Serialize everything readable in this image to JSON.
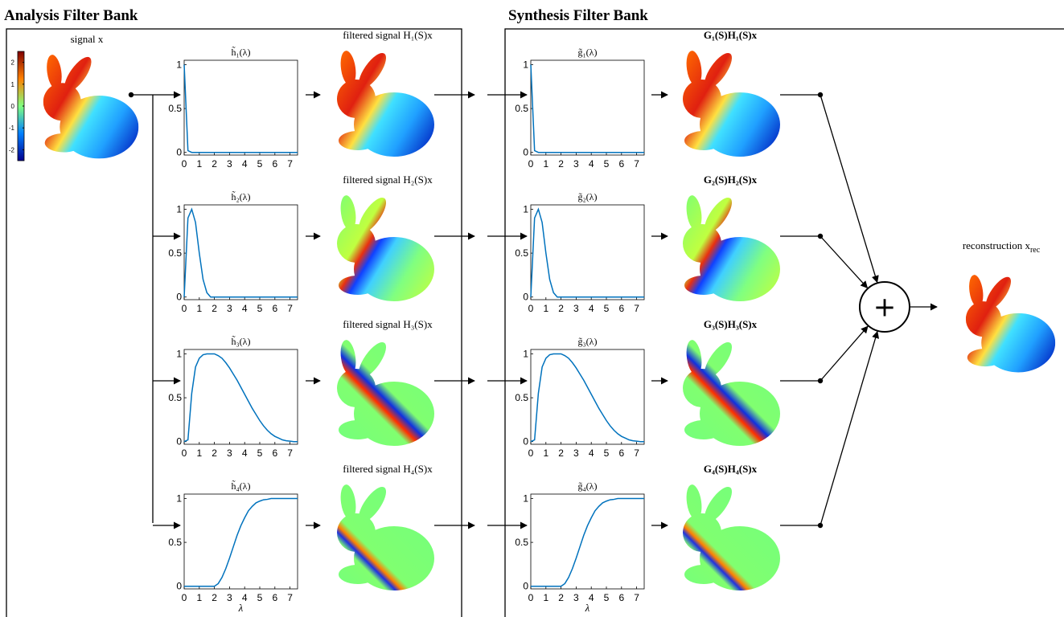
{
  "titles": {
    "analysis": "Analysis Filter Bank",
    "synthesis": "Synthesis Filter Bank"
  },
  "input_label": "signal x",
  "colorbar": {
    "lim": [
      -2.5,
      2.5
    ],
    "ticks": [
      -2,
      -1,
      0,
      1,
      2
    ]
  },
  "plot_axes": {
    "xlim": [
      0,
      7.5
    ],
    "ylim": [
      -0.03,
      1.05
    ],
    "xticks": [
      0,
      1,
      2,
      3,
      4,
      5,
      6,
      7
    ],
    "yticks": [
      0,
      0.5,
      1
    ],
    "xlabel": "λ",
    "x": [
      0,
      0.25,
      0.5,
      0.75,
      1,
      1.25,
      1.5,
      1.75,
      2,
      2.25,
      2.5,
      2.75,
      3,
      3.25,
      3.5,
      3.75,
      4,
      4.25,
      4.5,
      4.75,
      5,
      5.25,
      5.5,
      5.75,
      6,
      6.25,
      6.5,
      6.75,
      7,
      7.25,
      7.5
    ]
  },
  "analysis": [
    {
      "filter": "h̃₁(λ)",
      "output": "filtered signal H₁(S)x",
      "response": [
        1,
        0.02,
        0,
        0,
        0,
        0,
        0,
        0,
        0,
        0,
        0,
        0,
        0,
        0,
        0,
        0,
        0,
        0,
        0,
        0,
        0,
        0,
        0,
        0,
        0,
        0,
        0,
        0,
        0,
        0,
        0
      ]
    },
    {
      "filter": "h̃₂(λ)",
      "output": "filtered signal H₂(S)x",
      "response": [
        0,
        0.9,
        1,
        0.85,
        0.5,
        0.2,
        0.05,
        0,
        0,
        0,
        0,
        0,
        0,
        0,
        0,
        0,
        0,
        0,
        0,
        0,
        0,
        0,
        0,
        0,
        0,
        0,
        0,
        0,
        0,
        0,
        0
      ]
    },
    {
      "filter": "h̃₃(λ)",
      "output": "filtered signal H₃(S)x",
      "response": [
        0,
        0.02,
        0.55,
        0.85,
        0.95,
        0.99,
        1,
        1,
        1,
        0.98,
        0.95,
        0.9,
        0.84,
        0.77,
        0.7,
        0.62,
        0.54,
        0.46,
        0.38,
        0.31,
        0.24,
        0.18,
        0.13,
        0.09,
        0.06,
        0.04,
        0.02,
        0.01,
        0.005,
        0,
        0
      ]
    },
    {
      "filter": "h̃₄(λ)",
      "output": "filtered signal H₄(S)x",
      "response": [
        0,
        0,
        0,
        0,
        0,
        0,
        0,
        0,
        0,
        0.03,
        0.1,
        0.2,
        0.32,
        0.45,
        0.58,
        0.69,
        0.78,
        0.86,
        0.91,
        0.95,
        0.97,
        0.985,
        0.99,
        1,
        1,
        1,
        1,
        1,
        1,
        1,
        1
      ]
    }
  ],
  "synthesis": [
    {
      "filter": "g̃₁(λ)",
      "output": "G₁(S)H₁(S)x",
      "response": [
        1,
        0.02,
        0,
        0,
        0,
        0,
        0,
        0,
        0,
        0,
        0,
        0,
        0,
        0,
        0,
        0,
        0,
        0,
        0,
        0,
        0,
        0,
        0,
        0,
        0,
        0,
        0,
        0,
        0,
        0,
        0
      ]
    },
    {
      "filter": "g̃₂(λ)",
      "output": "G₂(S)H₂(S)x",
      "response": [
        0,
        0.9,
        1,
        0.85,
        0.5,
        0.2,
        0.05,
        0,
        0,
        0,
        0,
        0,
        0,
        0,
        0,
        0,
        0,
        0,
        0,
        0,
        0,
        0,
        0,
        0,
        0,
        0,
        0,
        0,
        0,
        0,
        0
      ]
    },
    {
      "filter": "g̃₃(λ)",
      "output": "G₃(S)H₃(S)x",
      "response": [
        0,
        0.02,
        0.55,
        0.85,
        0.95,
        0.99,
        1,
        1,
        1,
        0.98,
        0.95,
        0.9,
        0.84,
        0.77,
        0.7,
        0.62,
        0.54,
        0.46,
        0.38,
        0.31,
        0.24,
        0.18,
        0.13,
        0.09,
        0.06,
        0.04,
        0.02,
        0.01,
        0.005,
        0,
        0
      ]
    },
    {
      "filter": "g̃₄(λ)",
      "output": "G₄(S)H₄(S)x",
      "response": [
        0,
        0,
        0,
        0,
        0,
        0,
        0,
        0,
        0,
        0.03,
        0.1,
        0.2,
        0.32,
        0.45,
        0.58,
        0.69,
        0.78,
        0.86,
        0.91,
        0.95,
        0.97,
        0.985,
        0.99,
        1,
        1,
        1,
        1,
        1,
        1,
        1,
        1
      ]
    }
  ],
  "combiner": "+",
  "output_label": "reconstruction x",
  "output_sub": "rec"
}
